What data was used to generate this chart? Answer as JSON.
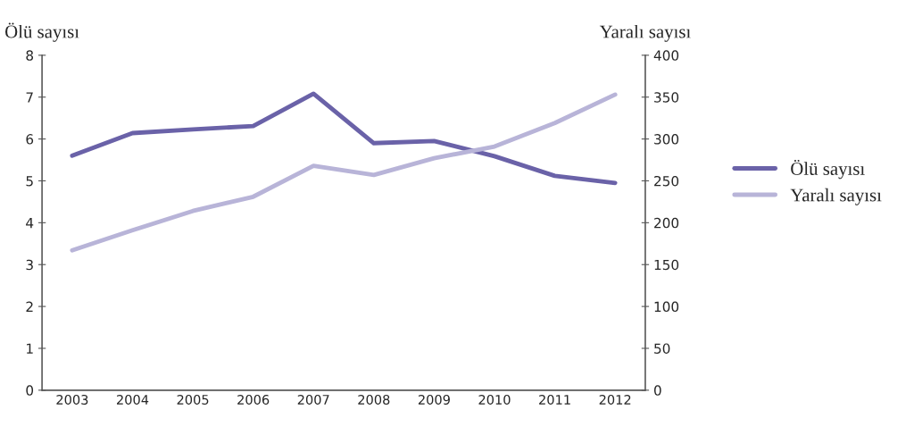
{
  "chart_data": {
    "type": "line",
    "ylabel": "Ölü sayısı",
    "y2label": "Yaralı sayısı",
    "categories": [
      "2003",
      "2004",
      "2005",
      "2006",
      "2007",
      "2008",
      "2009",
      "2010",
      "2011",
      "2012"
    ],
    "series": [
      {
        "name": "Ölü sayısı",
        "color": "#6a62a8",
        "values": [
          5.6,
          6.14,
          6.23,
          6.31,
          7.08,
          5.9,
          5.95,
          5.59,
          5.12,
          4.95
        ]
      },
      {
        "name": "Yaralı sayısı",
        "color": "#b8b4d8",
        "axis": "y2",
        "values": [
          167,
          191,
          214,
          231,
          268,
          257,
          277,
          291,
          319,
          353
        ]
      }
    ],
    "ylim": [
      0,
      8
    ],
    "yticks": [
      0,
      1,
      2,
      3,
      4,
      5,
      6,
      7,
      8
    ],
    "y2lim": [
      0,
      400
    ],
    "y2ticks": [
      0,
      50,
      100,
      150,
      200,
      250,
      300,
      350,
      400
    ],
    "grid": false,
    "legend": "right",
    "marker": "none",
    "line_style": "solid"
  }
}
